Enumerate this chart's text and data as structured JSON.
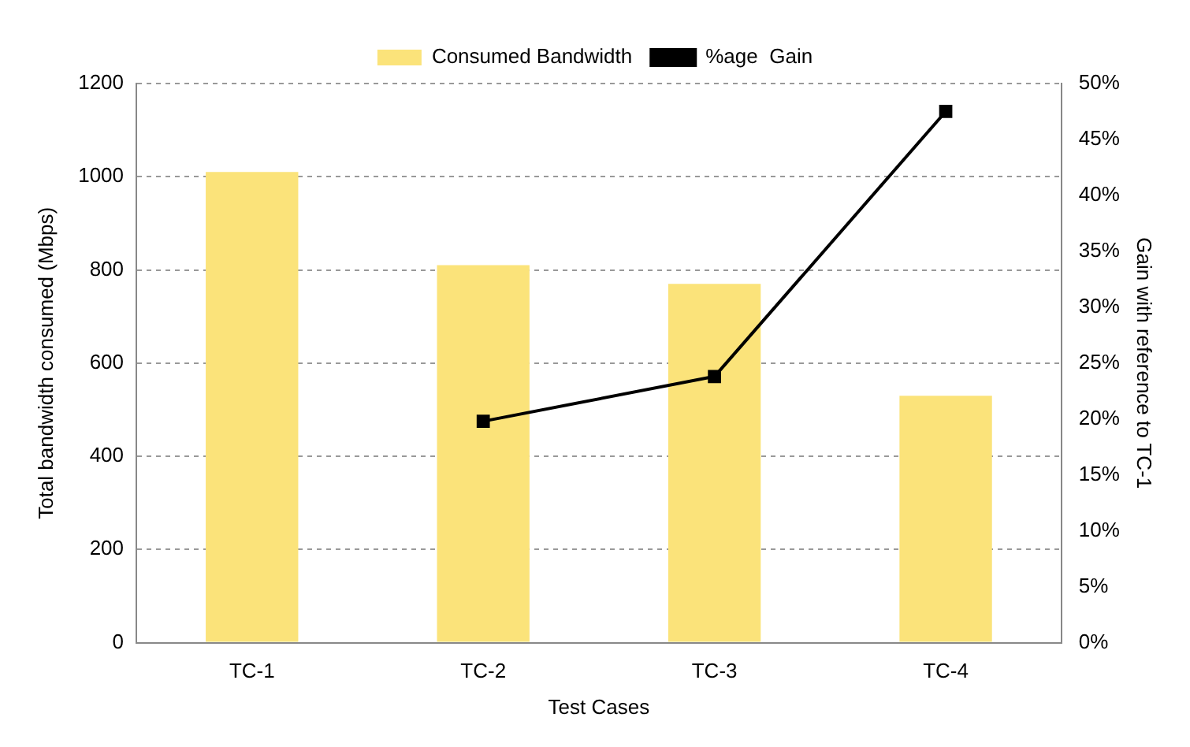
{
  "chart_data": {
    "type": "bar",
    "xlabel": "Test Cases",
    "ylabel": "Total bandwidth consumed (Mbps)",
    "y2label": "Gain with reference to TC-1",
    "categories": [
      "TC-1",
      "TC-2",
      "TC-3",
      "TC-4"
    ],
    "series": [
      {
        "name": "Consumed Bandwidth",
        "color": "#fbe37a",
        "values": [
          1010,
          810,
          770,
          530
        ]
      },
      {
        "name": "%age  Gain",
        "type": "line",
        "axis": "y2",
        "color": "#000000",
        "values": [
          null,
          19.8,
          23.8,
          47.5
        ]
      }
    ],
    "ylim": [
      0,
      1200
    ],
    "yticks": [
      0,
      200,
      400,
      600,
      800,
      1000,
      1200
    ],
    "y2lim": [
      0,
      50
    ],
    "y2ticks": [
      {
        "value": 0,
        "label": "0%"
      },
      {
        "value": 5,
        "label": "5%"
      },
      {
        "value": 10,
        "label": "10%"
      },
      {
        "value": 15,
        "label": "15%"
      },
      {
        "value": 20,
        "label": "20%"
      },
      {
        "value": 25,
        "label": "25%"
      },
      {
        "value": 30,
        "label": "30%"
      },
      {
        "value": 35,
        "label": "35%"
      },
      {
        "value": 40,
        "label": "40%"
      },
      {
        "value": 45,
        "label": "45%"
      },
      {
        "value": 50,
        "label": "50%"
      }
    ],
    "grid": "y",
    "legend": "top",
    "marker": "square",
    "line_style": "solid"
  }
}
